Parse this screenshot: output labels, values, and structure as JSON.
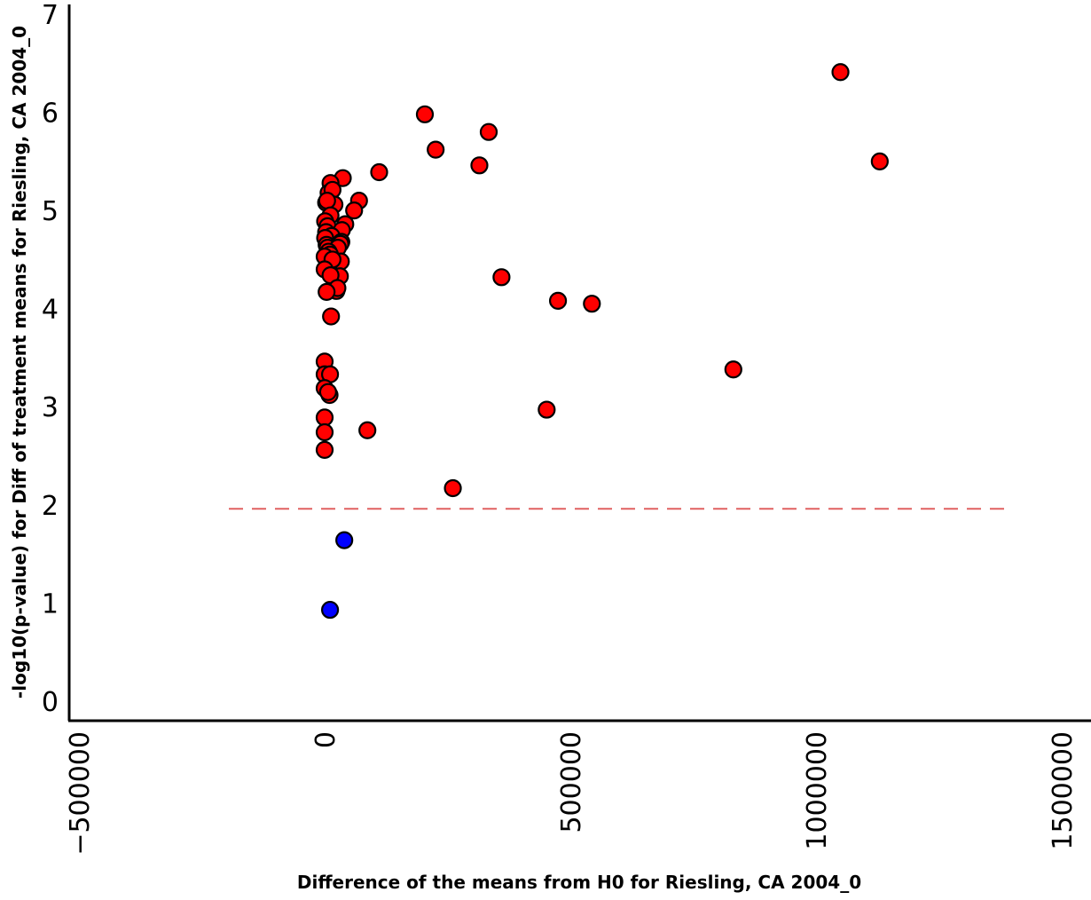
{
  "chart_data": {
    "type": "scatter",
    "xlabel": "Difference of the means from H0 for Riesling, CA 2004_0",
    "ylabel": "-log10(p-value) for Diff of treatment means for Riesling, CA 2004_0",
    "xlim": [
      -520000,
      1560000
    ],
    "ylim": [
      -0.2,
      7.1
    ],
    "x_ticks": [
      -500000,
      0,
      500000,
      1000000,
      1500000
    ],
    "x_tick_labels": [
      "−500000",
      "0",
      "500000",
      "1000000",
      "1500000"
    ],
    "y_ticks": [
      0,
      1,
      2,
      3,
      4,
      5,
      6,
      7
    ],
    "y_tick_labels": [
      "0",
      "1",
      "2",
      "3",
      "4",
      "5",
      "6",
      "7"
    ],
    "grid": false,
    "threshold": {
      "y": 1.96,
      "x_start": -195000,
      "x_end": 1395000,
      "color": "#e06060",
      "style": "dashed"
    },
    "colors": {
      "significant": "#ff0000",
      "not_significant": "#0000ff",
      "edge": "#000000"
    },
    "series": [
      {
        "color": "#ff0000",
        "points": [
          [
            1050000,
            6.41
          ],
          [
            204000,
            5.98
          ],
          [
            1130000,
            5.5
          ],
          [
            334000,
            5.8
          ],
          [
            226000,
            5.62
          ],
          [
            315000,
            5.46
          ],
          [
            111000,
            5.39
          ],
          [
            37000,
            5.33
          ],
          [
            12000,
            5.28
          ],
          [
            8000,
            5.18
          ],
          [
            16000,
            5.21
          ],
          [
            3000,
            5.08
          ],
          [
            20000,
            5.06
          ],
          [
            5000,
            5.1
          ],
          [
            70000,
            5.1
          ],
          [
            60000,
            5.0
          ],
          [
            12000,
            4.95
          ],
          [
            42000,
            4.86
          ],
          [
            1000,
            4.89
          ],
          [
            6000,
            4.84
          ],
          [
            35000,
            4.8
          ],
          [
            3000,
            4.78
          ],
          [
            14000,
            4.74
          ],
          [
            1000,
            4.72
          ],
          [
            34000,
            4.68
          ],
          [
            32000,
            4.66
          ],
          [
            4000,
            4.65
          ],
          [
            6000,
            4.62
          ],
          [
            27000,
            4.62
          ],
          [
            8000,
            4.58
          ],
          [
            11000,
            4.55
          ],
          [
            0,
            4.53
          ],
          [
            33000,
            4.48
          ],
          [
            16000,
            4.5
          ],
          [
            0,
            4.4
          ],
          [
            31000,
            4.33
          ],
          [
            12000,
            4.34
          ],
          [
            360000,
            4.32
          ],
          [
            24000,
            4.18
          ],
          [
            26000,
            4.21
          ],
          [
            4000,
            4.17
          ],
          [
            475000,
            4.08
          ],
          [
            544000,
            4.05
          ],
          [
            13000,
            3.92
          ],
          [
            0,
            3.46
          ],
          [
            0,
            3.33
          ],
          [
            11000,
            3.33
          ],
          [
            0,
            3.19
          ],
          [
            10000,
            3.12
          ],
          [
            7000,
            3.15
          ],
          [
            832000,
            3.38
          ],
          [
            452000,
            2.97
          ],
          [
            0,
            2.89
          ],
          [
            87000,
            2.76
          ],
          [
            0,
            2.74
          ],
          [
            0,
            2.56
          ],
          [
            261000,
            2.17
          ]
        ]
      },
      {
        "color": "#0000ff",
        "points": [
          [
            40000,
            1.64
          ],
          [
            11000,
            0.93
          ]
        ]
      }
    ]
  }
}
